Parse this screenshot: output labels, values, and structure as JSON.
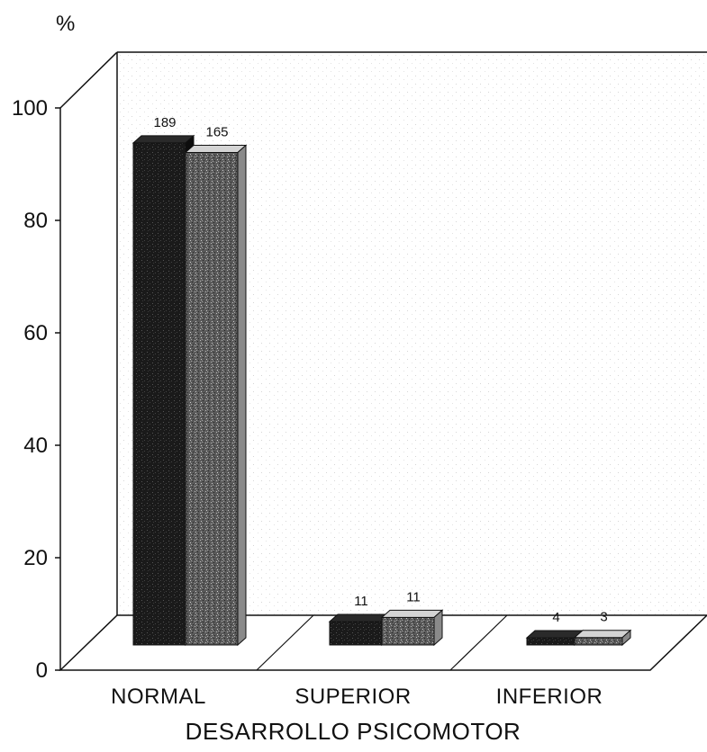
{
  "chart_data": {
    "type": "bar",
    "style": "3d",
    "categories": [
      "NORMAL",
      "SUPERIOR",
      "INFERIOR"
    ],
    "series": [
      {
        "values": [
          94.6,
          4.4,
          1.1
        ],
        "data_labels": [
          "189",
          "11",
          "4"
        ],
        "color": "#1e1e1e"
      },
      {
        "values": [
          92.8,
          5.2,
          1.4
        ],
        "data_labels": [
          "165",
          "11",
          "3"
        ],
        "color": "#6a6a6a"
      }
    ],
    "title": "",
    "xlabel": "DESARROLLO PSICOMOTOR",
    "ylabel": "%",
    "ylim": [
      0,
      100
    ],
    "yticks": [
      "0",
      "20",
      "40",
      "60",
      "80",
      "100"
    ],
    "grid": false,
    "legend": "none"
  }
}
